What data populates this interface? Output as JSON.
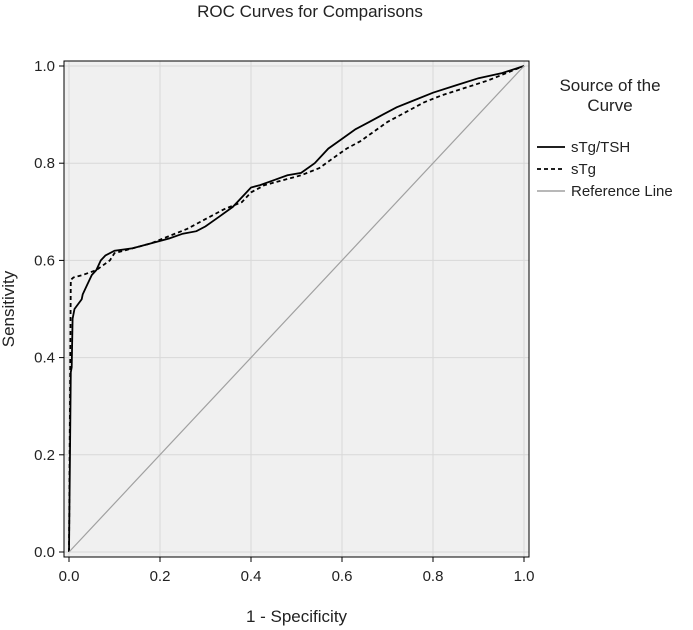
{
  "chart_data": {
    "type": "line",
    "title": "ROC Curves for Comparisons",
    "xlabel": "1 - Specificity",
    "ylabel": "Sensitivity",
    "xlim": [
      0,
      1
    ],
    "ylim": [
      0,
      1
    ],
    "x_ticks": [
      0.0,
      0.2,
      0.4,
      0.6,
      0.8,
      1.0
    ],
    "y_ticks": [
      0.0,
      0.2,
      0.4,
      0.6,
      0.8,
      1.0
    ],
    "x_tick_labels": [
      "0.0",
      "0.2",
      "0.4",
      "0.6",
      "0.8",
      "1.0"
    ],
    "y_tick_labels": [
      "0.0",
      "0.2",
      "0.4",
      "0.6",
      "0.8",
      "1.0"
    ],
    "grid": true,
    "legend": {
      "title_lines": [
        "Source of the",
        "Curve"
      ],
      "placement": "right"
    },
    "series": [
      {
        "name": "sTg/TSH",
        "style": "solid",
        "color": "#000000",
        "points": [
          [
            0,
            0
          ],
          [
            0.004,
            0.37
          ],
          [
            0.006,
            0.38
          ],
          [
            0.008,
            0.48
          ],
          [
            0.012,
            0.5
          ],
          [
            0.02,
            0.51
          ],
          [
            0.028,
            0.52
          ],
          [
            0.03,
            0.53
          ],
          [
            0.04,
            0.55
          ],
          [
            0.05,
            0.57
          ],
          [
            0.06,
            0.58
          ],
          [
            0.07,
            0.6
          ],
          [
            0.08,
            0.61
          ],
          [
            0.1,
            0.62
          ],
          [
            0.14,
            0.625
          ],
          [
            0.18,
            0.635
          ],
          [
            0.22,
            0.645
          ],
          [
            0.25,
            0.655
          ],
          [
            0.28,
            0.66
          ],
          [
            0.3,
            0.67
          ],
          [
            0.33,
            0.69
          ],
          [
            0.36,
            0.71
          ],
          [
            0.38,
            0.73
          ],
          [
            0.4,
            0.75
          ],
          [
            0.42,
            0.755
          ],
          [
            0.45,
            0.765
          ],
          [
            0.48,
            0.775
          ],
          [
            0.51,
            0.78
          ],
          [
            0.54,
            0.8
          ],
          [
            0.57,
            0.83
          ],
          [
            0.6,
            0.85
          ],
          [
            0.63,
            0.87
          ],
          [
            0.66,
            0.885
          ],
          [
            0.69,
            0.9
          ],
          [
            0.72,
            0.915
          ],
          [
            0.76,
            0.93
          ],
          [
            0.8,
            0.945
          ],
          [
            0.85,
            0.96
          ],
          [
            0.9,
            0.975
          ],
          [
            0.95,
            0.985
          ],
          [
            1.0,
            1.0
          ]
        ]
      },
      {
        "name": "sTg",
        "style": "dashed",
        "color": "#000000",
        "points": [
          [
            0,
            0
          ],
          [
            0.004,
            0.56
          ],
          [
            0.01,
            0.565
          ],
          [
            0.03,
            0.57
          ],
          [
            0.06,
            0.58
          ],
          [
            0.09,
            0.6
          ],
          [
            0.1,
            0.615
          ],
          [
            0.14,
            0.625
          ],
          [
            0.18,
            0.635
          ],
          [
            0.22,
            0.65
          ],
          [
            0.26,
            0.665
          ],
          [
            0.3,
            0.685
          ],
          [
            0.34,
            0.705
          ],
          [
            0.38,
            0.72
          ],
          [
            0.4,
            0.74
          ],
          [
            0.43,
            0.755
          ],
          [
            0.47,
            0.765
          ],
          [
            0.51,
            0.775
          ],
          [
            0.55,
            0.79
          ],
          [
            0.58,
            0.81
          ],
          [
            0.61,
            0.83
          ],
          [
            0.64,
            0.845
          ],
          [
            0.67,
            0.865
          ],
          [
            0.7,
            0.885
          ],
          [
            0.74,
            0.905
          ],
          [
            0.78,
            0.925
          ],
          [
            0.82,
            0.94
          ],
          [
            0.87,
            0.955
          ],
          [
            0.92,
            0.97
          ],
          [
            0.96,
            0.985
          ],
          [
            1.0,
            1.0
          ]
        ]
      },
      {
        "name": "Reference Line",
        "style": "solid",
        "color": "#a0a0a0",
        "points": [
          [
            0,
            0
          ],
          [
            1,
            1
          ]
        ]
      }
    ]
  }
}
